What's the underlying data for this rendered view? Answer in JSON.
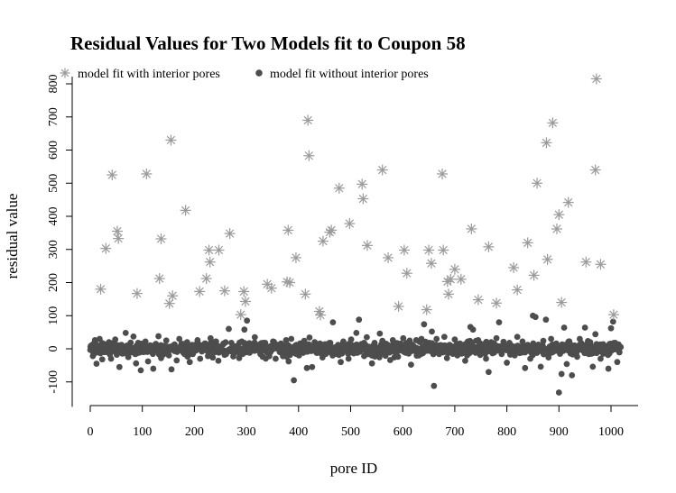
{
  "chart_data": {
    "type": "scatter",
    "title": "Residual Values for Two Models fit to Coupon 58",
    "xlabel": "pore ID",
    "ylabel": "residual value",
    "xlim": [
      -30,
      1055
    ],
    "ylim": [
      -175,
      850
    ],
    "x_ticks": [
      0,
      100,
      200,
      300,
      400,
      500,
      600,
      700,
      800,
      900,
      1000
    ],
    "y_ticks": [
      -100,
      0,
      100,
      200,
      300,
      400,
      500,
      600,
      700,
      800
    ],
    "grid": false,
    "legend_position": "top-left",
    "colors": {
      "with_pores": "#9a9a9a",
      "without_pores": "#4d4d4d"
    },
    "series": [
      {
        "name": "model fit with interior pores",
        "marker": "asterisk",
        "color": "#9a9a9a",
        "points": [
          [
            20,
            180
          ],
          [
            30,
            303
          ],
          [
            42,
            525
          ],
          [
            52,
            355
          ],
          [
            54,
            333
          ],
          [
            90,
            167
          ],
          [
            108,
            528
          ],
          [
            133,
            212
          ],
          [
            136,
            332
          ],
          [
            152,
            137
          ],
          [
            155,
            630
          ],
          [
            158,
            160
          ],
          [
            183,
            418
          ],
          [
            210,
            173
          ],
          [
            223,
            212
          ],
          [
            228,
            298
          ],
          [
            230,
            262
          ],
          [
            247,
            298
          ],
          [
            258,
            175
          ],
          [
            268,
            348
          ],
          [
            289,
            103
          ],
          [
            295,
            173
          ],
          [
            298,
            143
          ],
          [
            340,
            195
          ],
          [
            348,
            183
          ],
          [
            378,
            202
          ],
          [
            380,
            358
          ],
          [
            383,
            200
          ],
          [
            395,
            275
          ],
          [
            413,
            165
          ],
          [
            418,
            690
          ],
          [
            420,
            583
          ],
          [
            440,
            113
          ],
          [
            442,
            102
          ],
          [
            447,
            325
          ],
          [
            460,
            352
          ],
          [
            463,
            358
          ],
          [
            478,
            485
          ],
          [
            498,
            378
          ],
          [
            522,
            497
          ],
          [
            524,
            453
          ],
          [
            532,
            312
          ],
          [
            561,
            540
          ],
          [
            572,
            275
          ],
          [
            592,
            128
          ],
          [
            603,
            298
          ],
          [
            608,
            228
          ],
          [
            646,
            118
          ],
          [
            650,
            298
          ],
          [
            655,
            258
          ],
          [
            676,
            528
          ],
          [
            678,
            298
          ],
          [
            686,
            203
          ],
          [
            688,
            165
          ],
          [
            692,
            210
          ],
          [
            700,
            240
          ],
          [
            712,
            210
          ],
          [
            732,
            362
          ],
          [
            745,
            148
          ],
          [
            765,
            308
          ],
          [
            780,
            138
          ],
          [
            813,
            245
          ],
          [
            820,
            178
          ],
          [
            840,
            320
          ],
          [
            852,
            222
          ],
          [
            858,
            500
          ],
          [
            876,
            622
          ],
          [
            878,
            270
          ],
          [
            888,
            682
          ],
          [
            896,
            362
          ],
          [
            900,
            405
          ],
          [
            905,
            140
          ],
          [
            918,
            442
          ],
          [
            952,
            262
          ],
          [
            970,
            540
          ],
          [
            972,
            815
          ],
          [
            980,
            255
          ],
          [
            1005,
            103
          ]
        ]
      },
      {
        "name": "model fit without interior pores",
        "marker": "filled-circle",
        "color": "#4d4d4d",
        "points": [
          [
            2,
            10
          ],
          [
            5,
            -22
          ],
          [
            9,
            26
          ],
          [
            12,
            -45
          ],
          [
            16,
            -8
          ],
          [
            18,
            30
          ],
          [
            23,
            -32
          ],
          [
            27,
            14
          ],
          [
            31,
            -5
          ],
          [
            36,
            20
          ],
          [
            40,
            -30
          ],
          [
            44,
            5
          ],
          [
            48,
            28
          ],
          [
            51,
            -18
          ],
          [
            56,
            -55
          ],
          [
            60,
            12
          ],
          [
            64,
            -14
          ],
          [
            68,
            48
          ],
          [
            73,
            -25
          ],
          [
            78,
            3
          ],
          [
            83,
            37
          ],
          [
            88,
            -44
          ],
          [
            92,
            18
          ],
          [
            97,
            -65
          ],
          [
            102,
            -10
          ],
          [
            106,
            22
          ],
          [
            111,
            -38
          ],
          [
            116,
            8
          ],
          [
            121,
            -60
          ],
          [
            126,
            15
          ],
          [
            131,
            38
          ],
          [
            136,
            -28
          ],
          [
            141,
            0
          ],
          [
            146,
            25
          ],
          [
            151,
            -20
          ],
          [
            156,
            -62
          ],
          [
            161,
            10
          ],
          [
            166,
            -35
          ],
          [
            171,
            30
          ],
          [
            176,
            4
          ],
          [
            181,
            -16
          ],
          [
            186,
            20
          ],
          [
            191,
            -40
          ],
          [
            196,
            12
          ],
          [
            201,
            -6
          ],
          [
            206,
            26
          ],
          [
            211,
            -30
          ],
          [
            216,
            6
          ],
          [
            221,
            16
          ],
          [
            226,
            -22
          ],
          [
            231,
            32
          ],
          [
            236,
            -12
          ],
          [
            241,
            22
          ],
          [
            246,
            -36
          ],
          [
            251,
            4
          ],
          [
            256,
            14
          ],
          [
            261,
            -16
          ],
          [
            266,
            60
          ],
          [
            271,
            18
          ],
          [
            276,
            -8
          ],
          [
            281,
            8
          ],
          [
            286,
            -28
          ],
          [
            291,
            22
          ],
          [
            296,
            58
          ],
          [
            301,
            85
          ],
          [
            306,
            -12
          ],
          [
            311,
            10
          ],
          [
            316,
            35
          ],
          [
            321,
            -4
          ],
          [
            326,
            14
          ],
          [
            331,
            -24
          ],
          [
            336,
            18
          ],
          [
            341,
            4
          ],
          [
            346,
            -10
          ],
          [
            351,
            22
          ],
          [
            356,
            -30
          ],
          [
            361,
            8
          ],
          [
            366,
            16
          ],
          [
            371,
            -14
          ],
          [
            376,
            26
          ],
          [
            381,
            -38
          ],
          [
            386,
            30
          ],
          [
            391,
            -95
          ],
          [
            396,
            12
          ],
          [
            401,
            -20
          ],
          [
            406,
            6
          ],
          [
            411,
            24
          ],
          [
            416,
            -58
          ],
          [
            421,
            34
          ],
          [
            426,
            -55
          ],
          [
            431,
            20
          ],
          [
            436,
            -8
          ],
          [
            441,
            16
          ],
          [
            446,
            -26
          ],
          [
            451,
            14
          ],
          [
            456,
            4
          ],
          [
            461,
            18
          ],
          [
            466,
            80
          ],
          [
            471,
            -6
          ],
          [
            476,
            12
          ],
          [
            481,
            -40
          ],
          [
            486,
            22
          ],
          [
            491,
            2
          ],
          [
            496,
            -30
          ],
          [
            501,
            28
          ],
          [
            506,
            -14
          ],
          [
            511,
            48
          ],
          [
            516,
            88
          ],
          [
            521,
            10
          ],
          [
            526,
            -22
          ],
          [
            531,
            35
          ],
          [
            536,
            6
          ],
          [
            541,
            -44
          ],
          [
            546,
            18
          ],
          [
            551,
            -4
          ],
          [
            556,
            46
          ],
          [
            561,
            24
          ],
          [
            566,
            -18
          ],
          [
            571,
            12
          ],
          [
            576,
            -34
          ],
          [
            581,
            26
          ],
          [
            586,
            6
          ],
          [
            591,
            -24
          ],
          [
            596,
            16
          ],
          [
            601,
            32
          ],
          [
            606,
            -12
          ],
          [
            611,
            20
          ],
          [
            616,
            -48
          ],
          [
            621,
            8
          ],
          [
            626,
            26
          ],
          [
            631,
            -20
          ],
          [
            636,
            30
          ],
          [
            641,
            74
          ],
          [
            646,
            -6
          ],
          [
            651,
            18
          ],
          [
            656,
            52
          ],
          [
            660,
            -112
          ],
          [
            665,
            30
          ],
          [
            670,
            -16
          ],
          [
            675,
            10
          ],
          [
            680,
            36
          ],
          [
            685,
            -28
          ],
          [
            690,
            12
          ],
          [
            695,
            -4
          ],
          [
            700,
            28
          ],
          [
            705,
            -20
          ],
          [
            710,
            16
          ],
          [
            715,
            6
          ],
          [
            720,
            -36
          ],
          [
            725,
            22
          ],
          [
            730,
            66
          ],
          [
            735,
            58
          ],
          [
            740,
            -12
          ],
          [
            745,
            26
          ],
          [
            750,
            -2
          ],
          [
            755,
            14
          ],
          [
            760,
            -30
          ],
          [
            765,
            -70
          ],
          [
            770,
            20
          ],
          [
            775,
            2
          ],
          [
            780,
            32
          ],
          [
            785,
            80
          ],
          [
            790,
            -16
          ],
          [
            795,
            10
          ],
          [
            800,
            -42
          ],
          [
            805,
            18
          ],
          [
            810,
            6
          ],
          [
            815,
            -20
          ],
          [
            820,
            36
          ],
          [
            825,
            -6
          ],
          [
            830,
            22
          ],
          [
            835,
            -58
          ],
          [
            840,
            12
          ],
          [
            845,
            -30
          ],
          [
            850,
            100
          ],
          [
            855,
            96
          ],
          [
            860,
            8
          ],
          [
            865,
            -54
          ],
          [
            870,
            24
          ],
          [
            875,
            88
          ],
          [
            880,
            -26
          ],
          [
            885,
            30
          ],
          [
            890,
            -8
          ],
          [
            895,
            16
          ],
          [
            900,
            -132
          ],
          [
            905,
            -76
          ],
          [
            910,
            64
          ],
          [
            915,
            -46
          ],
          [
            920,
            22
          ],
          [
            925,
            -80
          ],
          [
            930,
            10
          ],
          [
            935,
            -24
          ],
          [
            940,
            30
          ],
          [
            945,
            2
          ],
          [
            950,
            64
          ],
          [
            955,
            -14
          ],
          [
            960,
            20
          ],
          [
            965,
            -54
          ],
          [
            970,
            44
          ],
          [
            975,
            6
          ],
          [
            980,
            -30
          ],
          [
            985,
            14
          ],
          [
            990,
            0
          ],
          [
            995,
            -60
          ],
          [
            1000,
            62
          ],
          [
            1004,
            82
          ],
          [
            1008,
            18
          ],
          [
            1012,
            -40
          ],
          [
            1016,
            -10
          ]
        ],
        "dense_band": {
          "x_range": [
            0,
            1020
          ],
          "y_range": [
            -30,
            30
          ],
          "note_count": 900
        }
      }
    ]
  }
}
